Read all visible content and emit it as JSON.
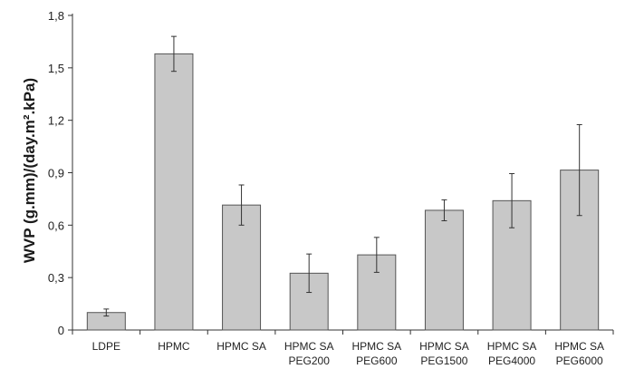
{
  "chart_data": {
    "type": "bar",
    "title": "",
    "xlabel": "",
    "ylabel": "WVP (g.mm)/(day.m².kPa)",
    "ylim": [
      0,
      1.8
    ],
    "yticks": [
      "0",
      "0,3",
      "0,6",
      "0,9",
      "1,2",
      "1,5",
      "1,8"
    ],
    "grid": false,
    "categories": [
      [
        "LDPE"
      ],
      [
        "HPMC"
      ],
      [
        "HPMC SA"
      ],
      [
        "HPMC SA",
        "PEG200"
      ],
      [
        "HPMC SA",
        "PEG600"
      ],
      [
        "HPMC SA",
        "PEG1500"
      ],
      [
        "HPMC SA",
        "PEG4000"
      ],
      [
        "HPMC SA",
        "PEG6000"
      ]
    ],
    "values": [
      0.1,
      1.58,
      0.715,
      0.325,
      0.43,
      0.685,
      0.74,
      0.915
    ],
    "errors": [
      0.02,
      0.1,
      0.115,
      0.11,
      0.1,
      0.06,
      0.155,
      0.26
    ],
    "colors": {
      "bar": "#c8c8c8",
      "bar_stroke": "#555555",
      "axis": "#333333"
    }
  }
}
